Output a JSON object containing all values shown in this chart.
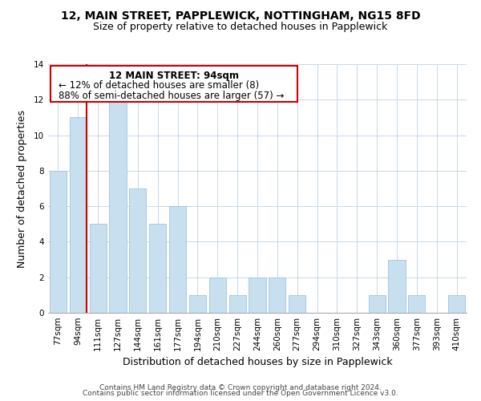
{
  "title": "12, MAIN STREET, PAPPLEWICK, NOTTINGHAM, NG15 8FD",
  "subtitle": "Size of property relative to detached houses in Papplewick",
  "xlabel": "Distribution of detached houses by size in Papplewick",
  "ylabel": "Number of detached properties",
  "categories": [
    "77sqm",
    "94sqm",
    "111sqm",
    "127sqm",
    "144sqm",
    "161sqm",
    "177sqm",
    "194sqm",
    "210sqm",
    "227sqm",
    "244sqm",
    "260sqm",
    "277sqm",
    "294sqm",
    "310sqm",
    "327sqm",
    "343sqm",
    "360sqm",
    "377sqm",
    "393sqm",
    "410sqm"
  ],
  "values": [
    8,
    11,
    5,
    12,
    7,
    5,
    6,
    1,
    2,
    1,
    2,
    2,
    1,
    0,
    0,
    0,
    1,
    3,
    1,
    0,
    1
  ],
  "bar_color": "#c8dff0",
  "bar_edge_color": "#a0c4e0",
  "marker_bar_index": 1,
  "marker_color": "#cc0000",
  "ylim": [
    0,
    14
  ],
  "yticks": [
    0,
    2,
    4,
    6,
    8,
    10,
    12,
    14
  ],
  "annotation_title": "12 MAIN STREET: 94sqm",
  "annotation_line1": "← 12% of detached houses are smaller (8)",
  "annotation_line2": "88% of semi-detached houses are larger (57) →",
  "footer1": "Contains HM Land Registry data © Crown copyright and database right 2024.",
  "footer2": "Contains public sector information licensed under the Open Government Licence v3.0.",
  "background_color": "#ffffff",
  "grid_color": "#c8d8e8",
  "title_fontsize": 10,
  "subtitle_fontsize": 9,
  "axis_label_fontsize": 9,
  "tick_fontsize": 7.5,
  "annotation_fontsize": 8.5,
  "footer_fontsize": 6.5
}
